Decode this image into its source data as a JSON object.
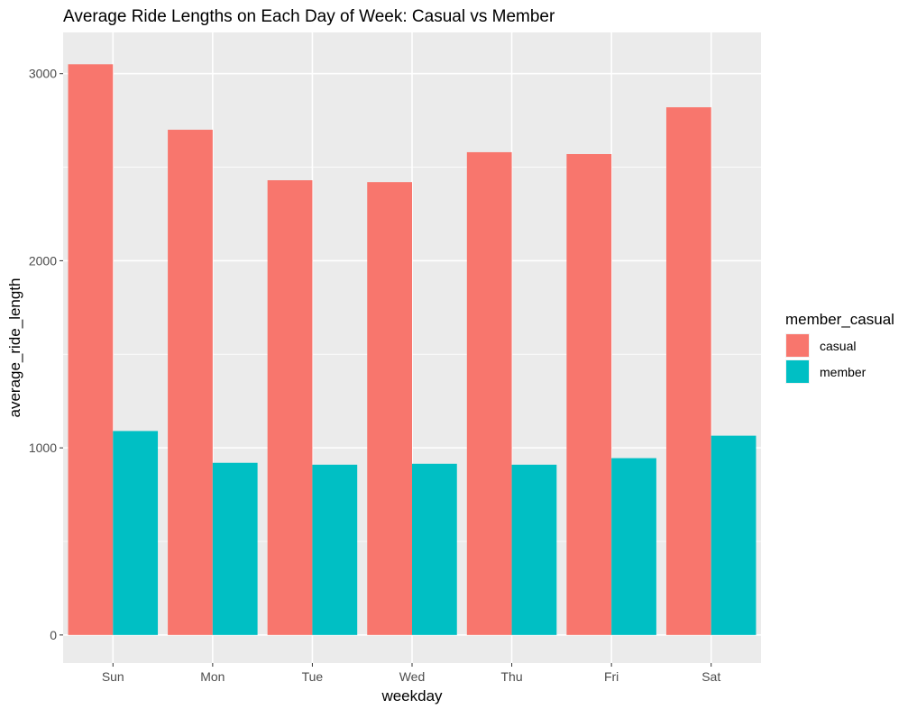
{
  "chart_data": {
    "type": "bar",
    "title": "Average Ride Lengths on Each Day of Week: Casual vs Member",
    "xlabel": "weekday",
    "ylabel": "average_ride_length",
    "categories": [
      "Sun",
      "Mon",
      "Tue",
      "Wed",
      "Thu",
      "Fri",
      "Sat"
    ],
    "series": [
      {
        "name": "casual",
        "color": "#F8766D",
        "values": [
          3050,
          2700,
          2430,
          2420,
          2580,
          2570,
          2820
        ]
      },
      {
        "name": "member",
        "color": "#00BFC4",
        "values": [
          1090,
          920,
          910,
          915,
          910,
          945,
          1065
        ]
      }
    ],
    "ylim": [
      -150,
      3220
    ],
    "yticks": [
      0,
      1000,
      2000,
      3000
    ],
    "grid": true,
    "legend": {
      "title": "member_casual",
      "placement": "right"
    },
    "panel_color": "#EBEBEB",
    "grid_color": "#FFFFFF"
  }
}
